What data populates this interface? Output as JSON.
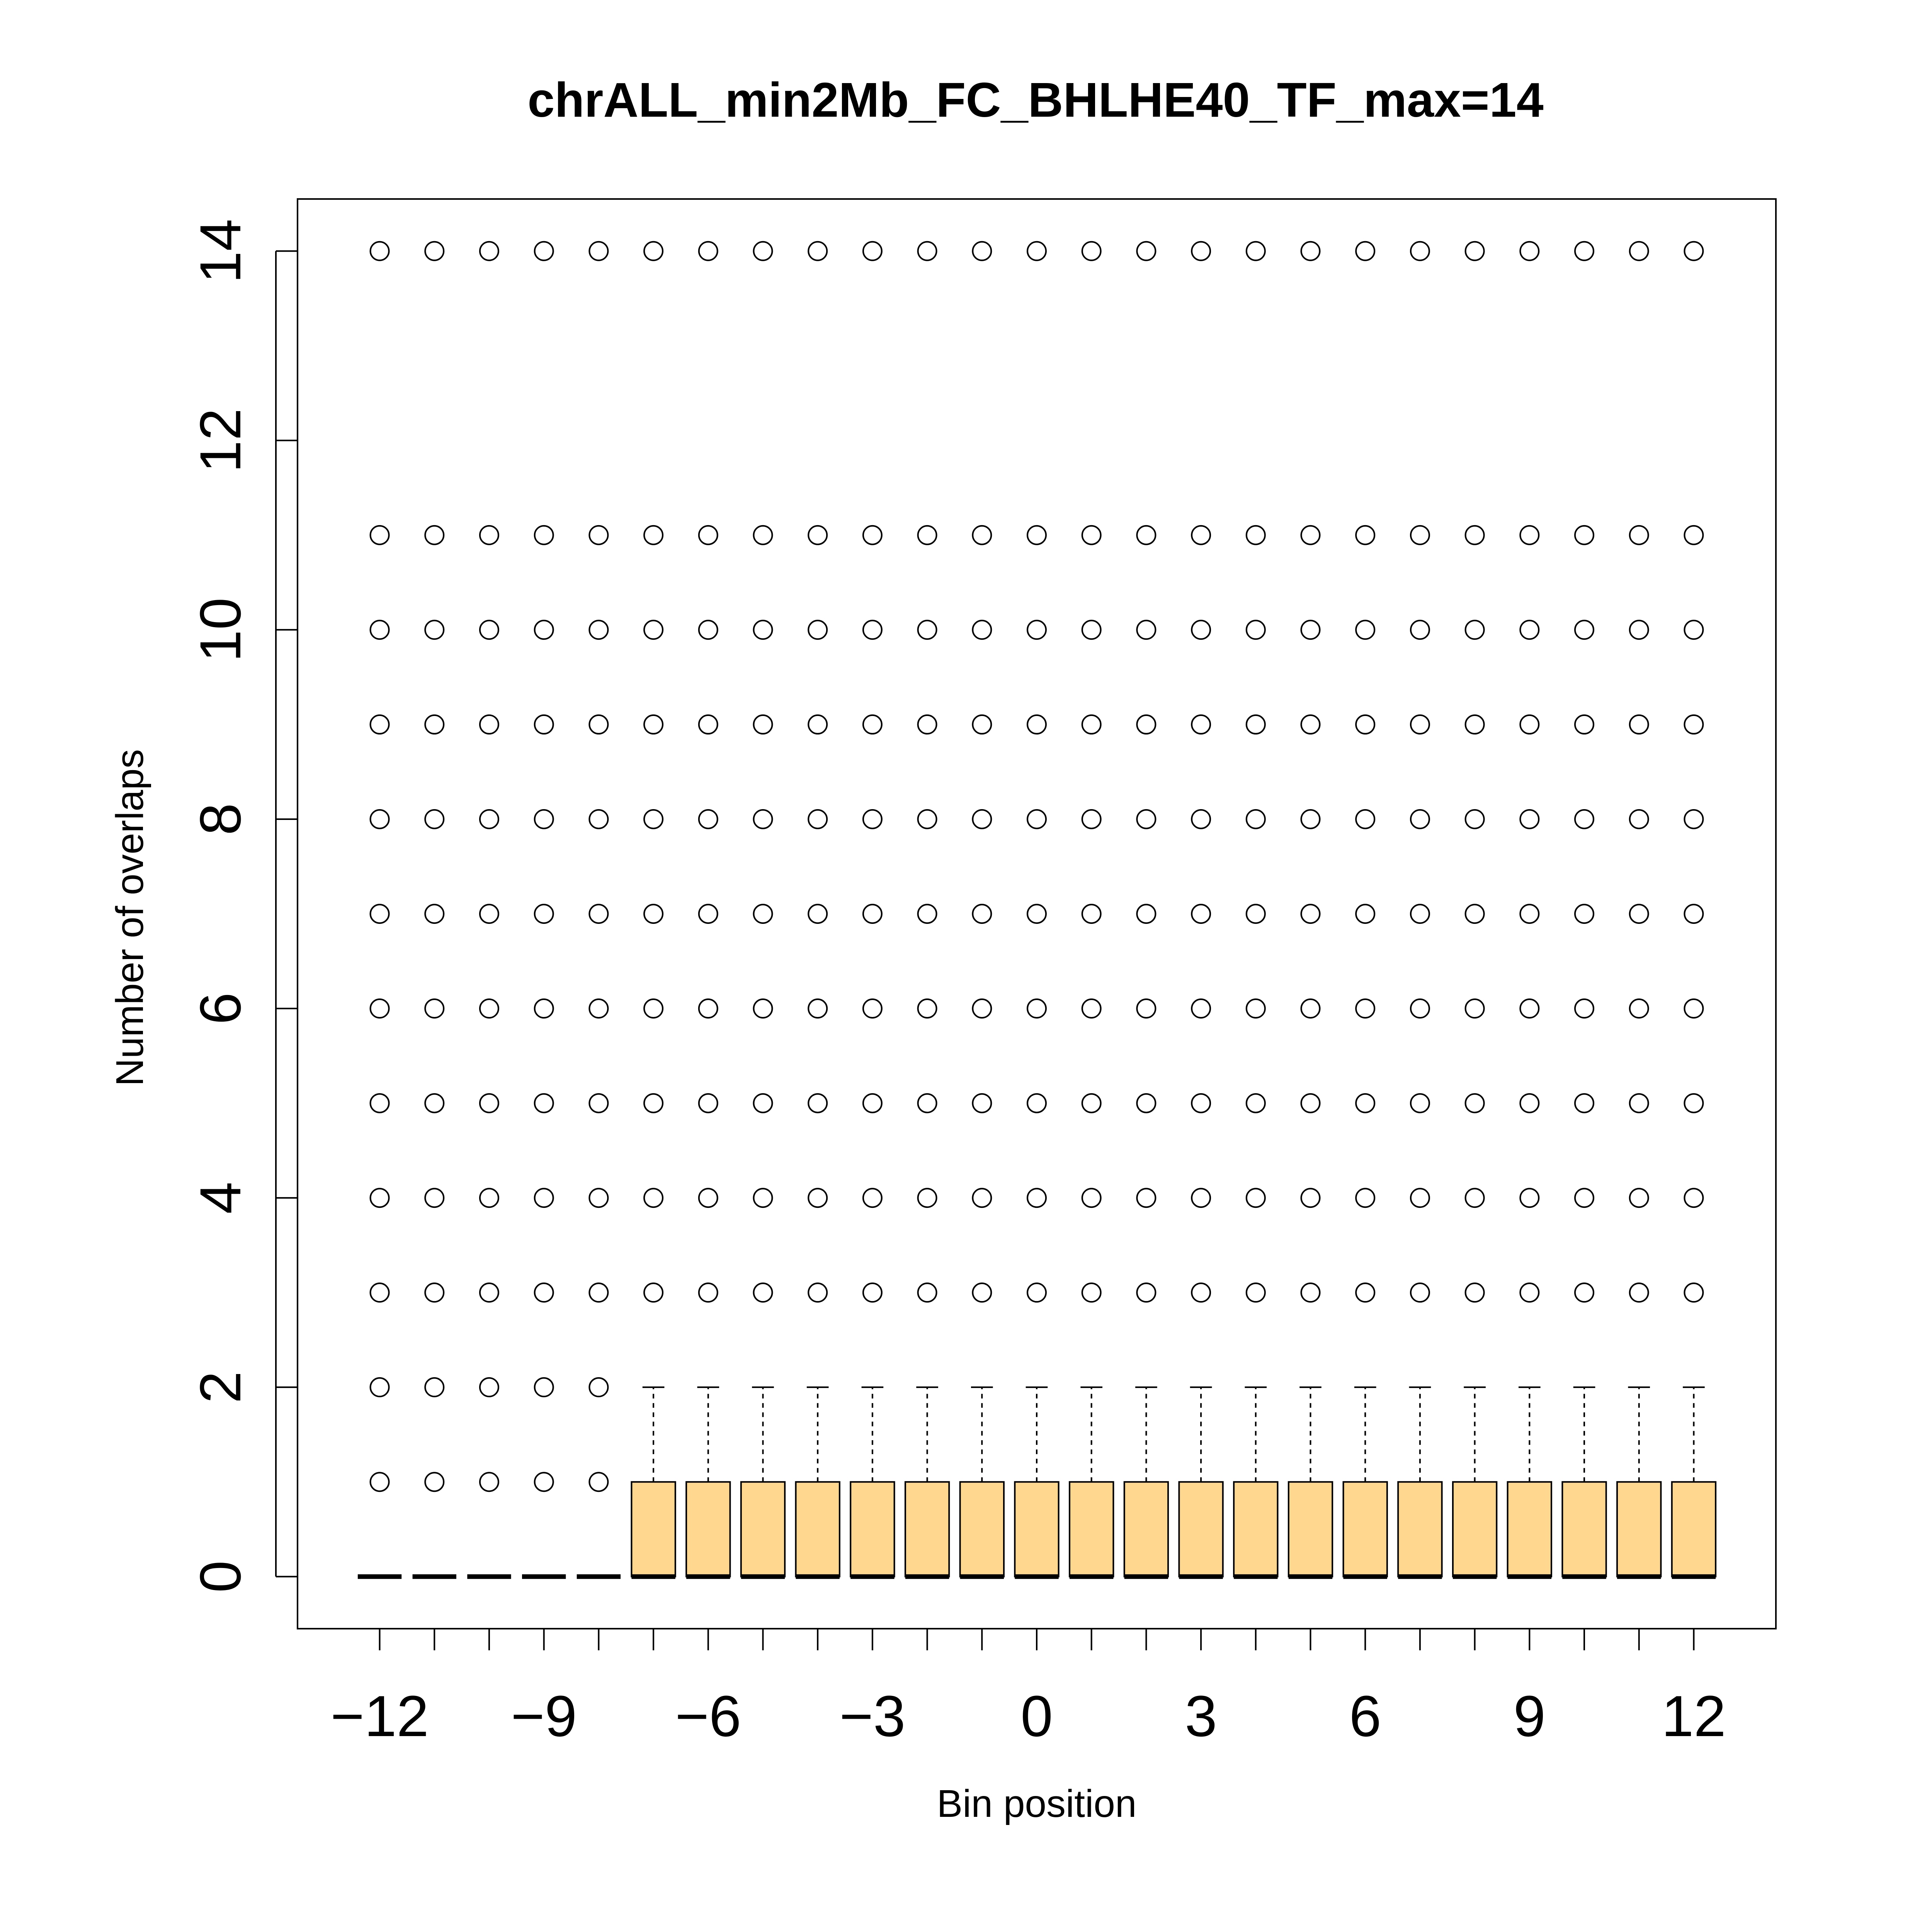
{
  "chart_data": {
    "type": "boxplot",
    "title": "chrALL_min2Mb_FC_BHLHE40_TF_max=14",
    "xlabel": "Bin position",
    "ylabel": "Number of overlaps",
    "xlim": [
      -13.5,
      13.5
    ],
    "ylim": [
      -0.55,
      14.55
    ],
    "xticks": [
      -12,
      -9,
      -6,
      -3,
      0,
      3,
      6,
      9,
      12
    ],
    "xtick_labels": [
      "−12",
      "−9",
      "−6",
      "−3",
      "0",
      "3",
      "6",
      "9",
      "12"
    ],
    "yticks": [
      0,
      2,
      4,
      6,
      8,
      10,
      12,
      14
    ],
    "ytick_labels": [
      "0",
      "2",
      "4",
      "6",
      "8",
      "10",
      "12",
      "14"
    ],
    "box_fill": "#FFD78F",
    "grid": false,
    "legend": "none",
    "bins": [
      {
        "x": -12,
        "q1": 0,
        "median": 0,
        "q3": 0,
        "whisker_low": 0,
        "whisker_high": 0,
        "outliers": [
          1,
          2,
          3,
          4,
          5,
          6,
          7,
          8,
          9,
          10,
          11,
          14
        ]
      },
      {
        "x": -11,
        "q1": 0,
        "median": 0,
        "q3": 0,
        "whisker_low": 0,
        "whisker_high": 0,
        "outliers": [
          1,
          2,
          3,
          4,
          5,
          6,
          7,
          8,
          9,
          10,
          11,
          14
        ]
      },
      {
        "x": -10,
        "q1": 0,
        "median": 0,
        "q3": 0,
        "whisker_low": 0,
        "whisker_high": 0,
        "outliers": [
          1,
          2,
          3,
          4,
          5,
          6,
          7,
          8,
          9,
          10,
          11,
          14
        ]
      },
      {
        "x": -9,
        "q1": 0,
        "median": 0,
        "q3": 0,
        "whisker_low": 0,
        "whisker_high": 0,
        "outliers": [
          1,
          2,
          3,
          4,
          5,
          6,
          7,
          8,
          9,
          10,
          11,
          14
        ]
      },
      {
        "x": -8,
        "q1": 0,
        "median": 0,
        "q3": 0,
        "whisker_low": 0,
        "whisker_high": 0,
        "outliers": [
          1,
          2,
          3,
          4,
          5,
          6,
          7,
          8,
          9,
          10,
          11,
          14
        ]
      },
      {
        "x": -7,
        "q1": 0,
        "median": 0,
        "q3": 1,
        "whisker_low": 0,
        "whisker_high": 2,
        "outliers": [
          3,
          4,
          5,
          6,
          7,
          8,
          9,
          10,
          11,
          14
        ]
      },
      {
        "x": -6,
        "q1": 0,
        "median": 0,
        "q3": 1,
        "whisker_low": 0,
        "whisker_high": 2,
        "outliers": [
          3,
          4,
          5,
          6,
          7,
          8,
          9,
          10,
          11,
          14
        ]
      },
      {
        "x": -5,
        "q1": 0,
        "median": 0,
        "q3": 1,
        "whisker_low": 0,
        "whisker_high": 2,
        "outliers": [
          3,
          4,
          5,
          6,
          7,
          8,
          9,
          10,
          11,
          14
        ]
      },
      {
        "x": -4,
        "q1": 0,
        "median": 0,
        "q3": 1,
        "whisker_low": 0,
        "whisker_high": 2,
        "outliers": [
          3,
          4,
          5,
          6,
          7,
          8,
          9,
          10,
          11,
          14
        ]
      },
      {
        "x": -3,
        "q1": 0,
        "median": 0,
        "q3": 1,
        "whisker_low": 0,
        "whisker_high": 2,
        "outliers": [
          3,
          4,
          5,
          6,
          7,
          8,
          9,
          10,
          11,
          14
        ]
      },
      {
        "x": -2,
        "q1": 0,
        "median": 0,
        "q3": 1,
        "whisker_low": 0,
        "whisker_high": 2,
        "outliers": [
          3,
          4,
          5,
          6,
          7,
          8,
          9,
          10,
          11,
          14
        ]
      },
      {
        "x": -1,
        "q1": 0,
        "median": 0,
        "q3": 1,
        "whisker_low": 0,
        "whisker_high": 2,
        "outliers": [
          3,
          4,
          5,
          6,
          7,
          8,
          9,
          10,
          11,
          14
        ]
      },
      {
        "x": 0,
        "q1": 0,
        "median": 0,
        "q3": 1,
        "whisker_low": 0,
        "whisker_high": 2,
        "outliers": [
          3,
          4,
          5,
          6,
          7,
          8,
          9,
          10,
          11,
          14
        ]
      },
      {
        "x": 1,
        "q1": 0,
        "median": 0,
        "q3": 1,
        "whisker_low": 0,
        "whisker_high": 2,
        "outliers": [
          3,
          4,
          5,
          6,
          7,
          8,
          9,
          10,
          11,
          14
        ]
      },
      {
        "x": 2,
        "q1": 0,
        "median": 0,
        "q3": 1,
        "whisker_low": 0,
        "whisker_high": 2,
        "outliers": [
          3,
          4,
          5,
          6,
          7,
          8,
          9,
          10,
          11,
          14
        ]
      },
      {
        "x": 3,
        "q1": 0,
        "median": 0,
        "q3": 1,
        "whisker_low": 0,
        "whisker_high": 2,
        "outliers": [
          3,
          4,
          5,
          6,
          7,
          8,
          9,
          10,
          11,
          14
        ]
      },
      {
        "x": 4,
        "q1": 0,
        "median": 0,
        "q3": 1,
        "whisker_low": 0,
        "whisker_high": 2,
        "outliers": [
          3,
          4,
          5,
          6,
          7,
          8,
          9,
          10,
          11,
          14
        ]
      },
      {
        "x": 5,
        "q1": 0,
        "median": 0,
        "q3": 1,
        "whisker_low": 0,
        "whisker_high": 2,
        "outliers": [
          3,
          4,
          5,
          6,
          7,
          8,
          9,
          10,
          11,
          14
        ]
      },
      {
        "x": 6,
        "q1": 0,
        "median": 0,
        "q3": 1,
        "whisker_low": 0,
        "whisker_high": 2,
        "outliers": [
          3,
          4,
          5,
          6,
          7,
          8,
          9,
          10,
          11,
          14
        ]
      },
      {
        "x": 7,
        "q1": 0,
        "median": 0,
        "q3": 1,
        "whisker_low": 0,
        "whisker_high": 2,
        "outliers": [
          3,
          4,
          5,
          6,
          7,
          8,
          9,
          10,
          11,
          14
        ]
      },
      {
        "x": 8,
        "q1": 0,
        "median": 0,
        "q3": 1,
        "whisker_low": 0,
        "whisker_high": 2,
        "outliers": [
          3,
          4,
          5,
          6,
          7,
          8,
          9,
          10,
          11,
          14
        ]
      },
      {
        "x": 9,
        "q1": 0,
        "median": 0,
        "q3": 1,
        "whisker_low": 0,
        "whisker_high": 2,
        "outliers": [
          3,
          4,
          5,
          6,
          7,
          8,
          9,
          10,
          11,
          14
        ]
      },
      {
        "x": 10,
        "q1": 0,
        "median": 0,
        "q3": 1,
        "whisker_low": 0,
        "whisker_high": 2,
        "outliers": [
          3,
          4,
          5,
          6,
          7,
          8,
          9,
          10,
          11,
          14
        ]
      },
      {
        "x": 11,
        "q1": 0,
        "median": 0,
        "q3": 1,
        "whisker_low": 0,
        "whisker_high": 2,
        "outliers": [
          3,
          4,
          5,
          6,
          7,
          8,
          9,
          10,
          11,
          14
        ]
      },
      {
        "x": 12,
        "q1": 0,
        "median": 0,
        "q3": 1,
        "whisker_low": 0,
        "whisker_high": 2,
        "outliers": [
          3,
          4,
          5,
          6,
          7,
          8,
          9,
          10,
          11,
          14
        ]
      }
    ]
  }
}
